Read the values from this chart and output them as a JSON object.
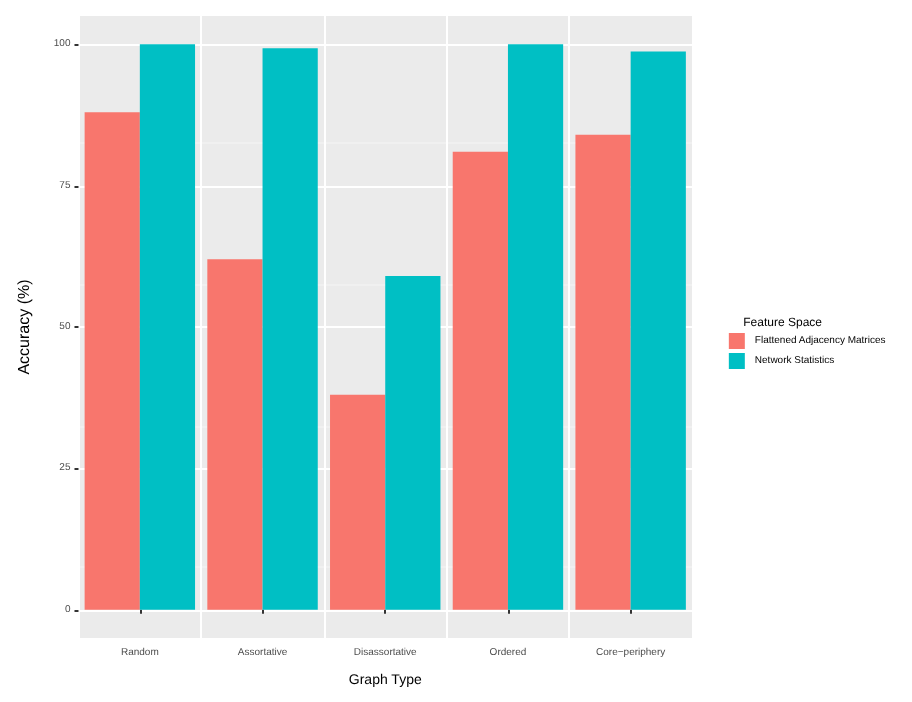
{
  "chart_data": {
    "type": "bar",
    "xlabel": "Graph Type",
    "ylabel": "Accuracy (%)",
    "legend_title": "Feature Space",
    "categories": [
      "Random",
      "Assortative",
      "Disassortative",
      "Ordered",
      "Core−periphery"
    ],
    "series": [
      {
        "name": "Flattened Adjacency Matrices",
        "color": "#f8766d",
        "values": [
          88,
          62,
          38,
          81,
          84
        ]
      },
      {
        "name": "Network Statistics",
        "color": "#00bfc4",
        "values": [
          100,
          99.3,
          59,
          100,
          98.7
        ]
      }
    ],
    "ylim": [
      -5,
      105
    ],
    "yticks": [
      0,
      25,
      50,
      75,
      100
    ],
    "grid": true,
    "legend": "right"
  }
}
